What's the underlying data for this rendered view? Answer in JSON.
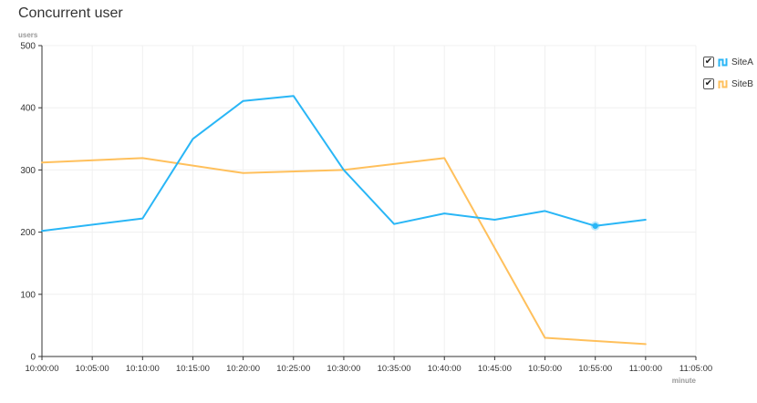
{
  "page": {
    "title": "Concurrent user"
  },
  "legend": {
    "items": [
      {
        "label": "SiteA",
        "color": "#29b6f6",
        "checked": true,
        "check_glyph": "✔",
        "icon": "line-series-icon"
      },
      {
        "label": "SiteB",
        "color": "#ffc05c",
        "checked": true,
        "check_glyph": "✔",
        "icon": "line-series-icon"
      }
    ]
  },
  "chart_data": {
    "type": "line",
    "title": "Concurrent user",
    "xlabel": "minute",
    "ylabel": "users",
    "ylim": [
      0,
      500
    ],
    "yticks": [
      0,
      100,
      200,
      300,
      400,
      500
    ],
    "xticks": [
      "10:00:00",
      "10:05:00",
      "10:10:00",
      "10:15:00",
      "10:20:00",
      "10:25:00",
      "10:30:00",
      "10:35:00",
      "10:40:00",
      "10:45:00",
      "10:50:00",
      "10:55:00",
      "11:00:00",
      "11:05:00"
    ],
    "x": [
      "10:00:00",
      "10:10:00",
      "10:15:00",
      "10:20:00",
      "10:25:00",
      "10:30:00",
      "10:35:00",
      "10:40:00",
      "10:45:00",
      "10:50:00",
      "10:55:00",
      "11:00:00"
    ],
    "series": [
      {
        "name": "SiteA",
        "color": "#29b6f6",
        "x": [
          "10:00:00",
          "10:10:00",
          "10:15:00",
          "10:20:00",
          "10:25:00",
          "10:30:00",
          "10:35:00",
          "10:40:00",
          "10:45:00",
          "10:50:00",
          "10:55:00",
          "11:00:00"
        ],
        "values": [
          202,
          222,
          350,
          411,
          419,
          300,
          213,
          230,
          220,
          234,
          210,
          220
        ]
      },
      {
        "name": "SiteB",
        "color": "#ffc05c",
        "x": [
          "10:00:00",
          "10:10:00",
          "10:20:00",
          "10:30:00",
          "10:40:00",
          "10:50:00",
          "11:00:00"
        ],
        "values": [
          312,
          319,
          295,
          300,
          319,
          30,
          20
        ]
      }
    ],
    "highlight": {
      "series": "SiteA",
      "x": "10:55:00",
      "value": 210
    },
    "grid": true,
    "legend_position": "right"
  }
}
